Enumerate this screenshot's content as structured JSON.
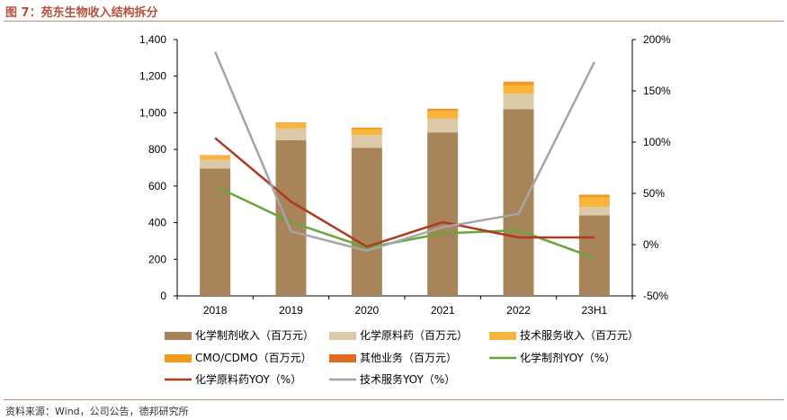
{
  "title": "图 7：苑东生物收入结构拆分",
  "source": "资料来源：Wind，公司公告，德邦研究所",
  "chart_data": {
    "type": "bar",
    "stacked": true,
    "categories": [
      "2018",
      "2019",
      "2020",
      "2021",
      "2022",
      "23H1"
    ],
    "series": [
      {
        "name": "化学制剂收入（百万元）",
        "axis": "left",
        "kind": "bar",
        "color": "#a8845a",
        "values": [
          695,
          850,
          808,
          893,
          1020,
          440
        ]
      },
      {
        "name": "化学原料药（百万元）",
        "axis": "left",
        "kind": "bar",
        "color": "#dcc9a8",
        "values": [
          48,
          65,
          70,
          75,
          85,
          45
        ]
      },
      {
        "name": "技术服务收入（百万元）",
        "axis": "left",
        "kind": "bar",
        "color": "#f7b53b",
        "values": [
          22,
          28,
          33,
          42,
          45,
          52
        ]
      },
      {
        "name": "CMO/CDMO（百万元）",
        "axis": "left",
        "kind": "bar",
        "color": "#f39a16",
        "values": [
          3,
          3,
          6,
          10,
          18,
          15
        ]
      },
      {
        "name": "其他业务（百万元）",
        "axis": "left",
        "kind": "bar",
        "color": "#e36a1e",
        "values": [
          1,
          1,
          2,
          2,
          2,
          1
        ]
      },
      {
        "name": "化学制剂YOY（%）",
        "axis": "right",
        "kind": "line",
        "color": "#6aa43c",
        "values": [
          57,
          22,
          -3,
          11,
          14,
          -13
        ]
      },
      {
        "name": "化学原料药YOY（%）",
        "axis": "right",
        "kind": "line",
        "color": "#b03a1e",
        "values": [
          104,
          42,
          -2,
          22,
          7,
          7
        ]
      },
      {
        "name": "技术服务YOY（%）",
        "axis": "right",
        "kind": "line",
        "color": "#a5a5a5",
        "values": [
          188,
          13,
          -6,
          17,
          30,
          178
        ]
      }
    ],
    "ylim": [
      0,
      1400
    ],
    "yticks": [
      "0",
      "200",
      "400",
      "600",
      "800",
      "1,000",
      "1,200",
      "1,400"
    ],
    "y2lim": [
      -50,
      200
    ],
    "y2ticks": [
      "-50%",
      "0%",
      "50%",
      "100%",
      "150%",
      "200%"
    ],
    "legend_position": "bottom",
    "grid": false
  }
}
